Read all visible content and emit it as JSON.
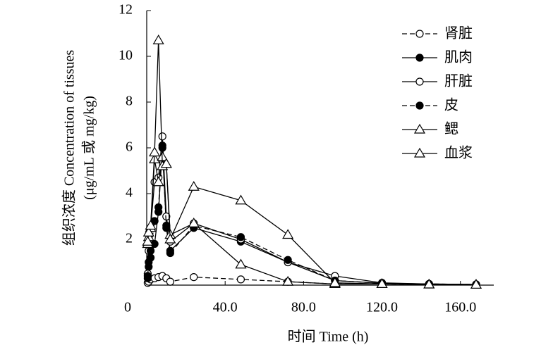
{
  "chart_data": {
    "type": "line",
    "y_label_lines": [
      "组织浓度 Concentration of tissues",
      "(μg/mL 或 mg/kg)"
    ],
    "x_label": "时间 Time (h)",
    "x": [
      0.5,
      1,
      2,
      4,
      6,
      8,
      10,
      12,
      24,
      48,
      72,
      96,
      120,
      144,
      168
    ],
    "xlim": [
      0,
      177
    ],
    "xticks": [
      {
        "value": 0,
        "label": "0"
      },
      {
        "value": 40,
        "label": "40.0"
      },
      {
        "value": 80,
        "label": "80.0"
      },
      {
        "value": 120,
        "label": "120.0"
      },
      {
        "value": 160,
        "label": "160.0"
      }
    ],
    "ylim": [
      0,
      12
    ],
    "yticks": [
      2,
      4,
      6,
      8,
      10,
      12
    ],
    "color": "#000000",
    "legend": "top-right",
    "series": [
      {
        "name": "肾脏",
        "marker": "circle",
        "filled": false,
        "dashed": true,
        "values": [
          0.1,
          0.15,
          0.25,
          0.3,
          0.35,
          0.4,
          0.3,
          0.15,
          0.35,
          0.25,
          0.15,
          0.05,
          0.05,
          0.03,
          0.02
        ]
      },
      {
        "name": "肌肉",
        "marker": "circle",
        "filled": true,
        "dashed": false,
        "values": [
          0.3,
          0.8,
          1.2,
          1.8,
          3.2,
          6.0,
          2.6,
          1.5,
          2.5,
          1.9,
          1.0,
          0.2,
          0.08,
          0.05,
          0.03
        ]
      },
      {
        "name": "肝脏",
        "marker": "circle",
        "filled": false,
        "dashed": false,
        "values": [
          0.5,
          1.5,
          2.5,
          4.5,
          4.7,
          6.5,
          3.0,
          1.9,
          2.7,
          2.0,
          1.0,
          0.4,
          0.1,
          0.05,
          0.03
        ]
      },
      {
        "name": "皮",
        "marker": "circle",
        "filled": true,
        "dashed": true,
        "values": [
          0.4,
          1.0,
          1.5,
          2.8,
          3.4,
          6.1,
          2.5,
          1.4,
          2.6,
          2.1,
          1.1,
          0.2,
          0.08,
          0.05,
          0.03
        ]
      },
      {
        "name": "鳃",
        "marker": "triangle",
        "filled": false,
        "dashed": false,
        "values": [
          1.8,
          2.1,
          2.5,
          5.5,
          4.5,
          5.6,
          5.3,
          2.2,
          2.7,
          0.9,
          0.15,
          0.05,
          0.05,
          0.03,
          0.02
        ]
      },
      {
        "name": "血浆",
        "marker": "triangle",
        "filled": false,
        "dashed": false,
        "values": [
          1.9,
          2.3,
          2.6,
          5.8,
          10.7,
          5.2,
          5.3,
          2.0,
          4.3,
          3.7,
          2.2,
          0.1,
          0.05,
          0.03,
          0.02
        ]
      }
    ]
  }
}
